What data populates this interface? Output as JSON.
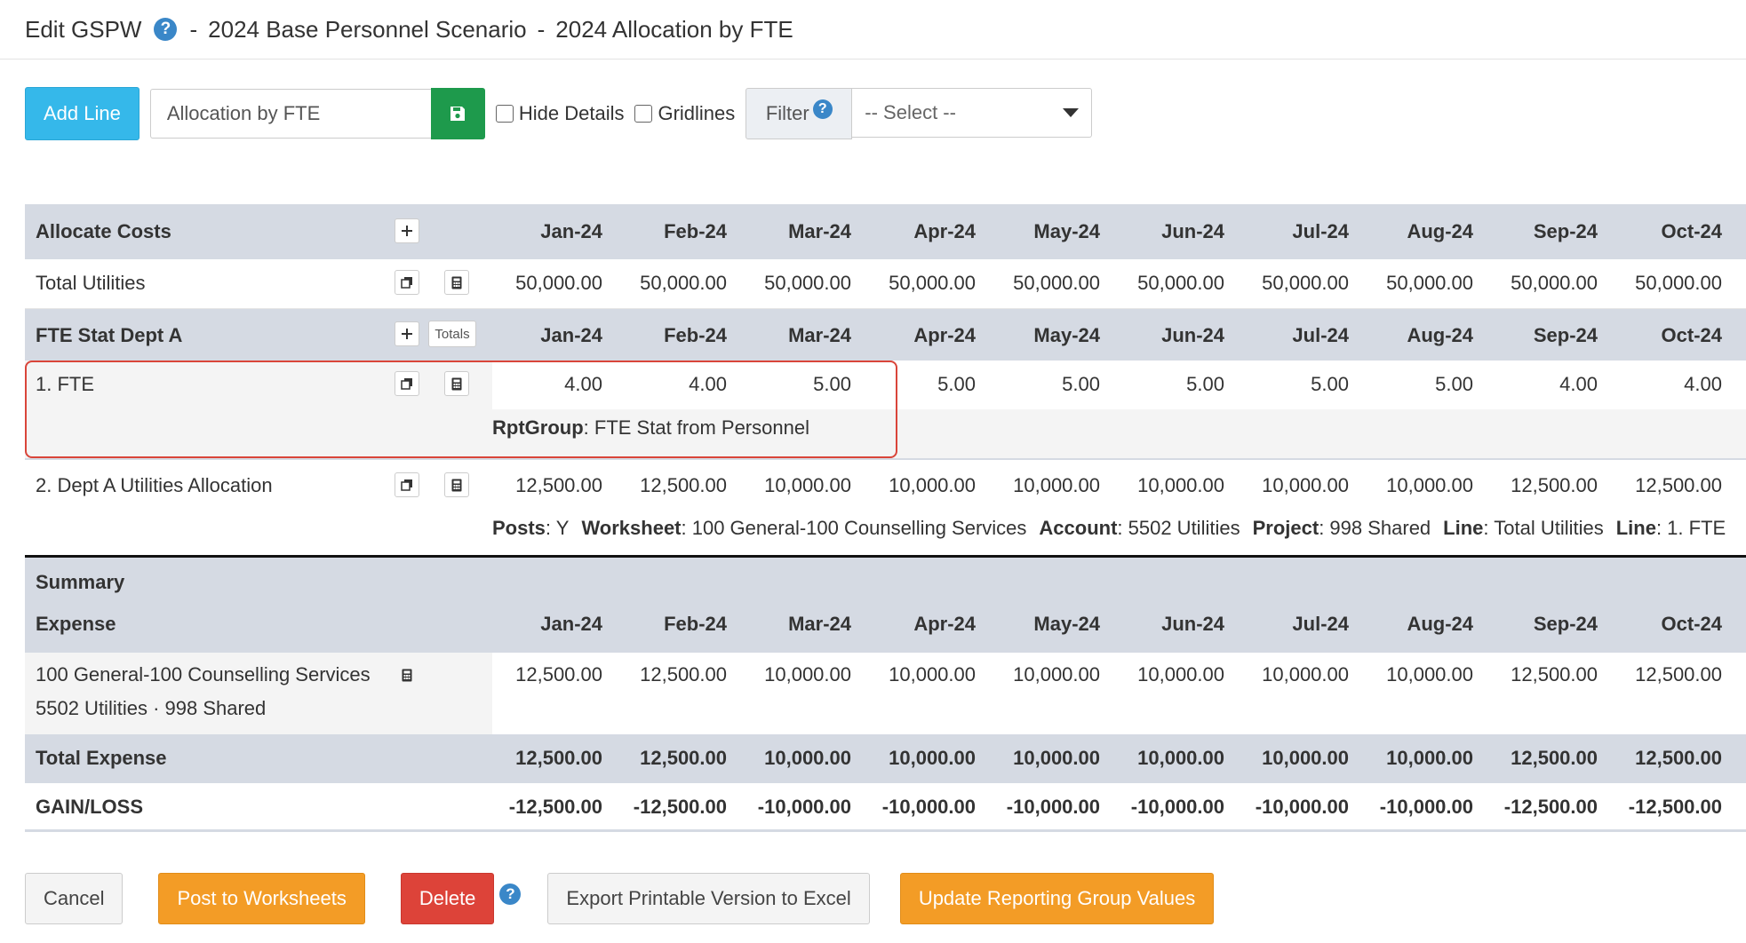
{
  "header": {
    "title": "Edit GSPW",
    "scenario": "2024 Base Personnel Scenario",
    "page": "2024 Allocation by FTE",
    "separator": "-"
  },
  "toolbar": {
    "add_line_label": "Add Line",
    "name_value": "Allocation by FTE",
    "hide_details_label": "Hide Details",
    "gridlines_label": "Gridlines",
    "filter_label": "Filter",
    "filter_selected": "-- Select --"
  },
  "months": [
    "Jan-24",
    "Feb-24",
    "Mar-24",
    "Apr-24",
    "May-24",
    "Jun-24",
    "Jul-24",
    "Aug-24",
    "Sep-24",
    "Oct-24"
  ],
  "sections": {
    "allocate_costs": {
      "title": "Allocate Costs",
      "total_utilities": {
        "label": "Total Utilities",
        "values": [
          "50,000.00",
          "50,000.00",
          "50,000.00",
          "50,000.00",
          "50,000.00",
          "50,000.00",
          "50,000.00",
          "50,000.00",
          "50,000.00",
          "50,000.00"
        ]
      }
    },
    "fte_stat": {
      "title": "FTE Stat Dept A",
      "totals_label": "Totals",
      "fte": {
        "label": "1. FTE",
        "values": [
          "4.00",
          "4.00",
          "5.00",
          "5.00",
          "5.00",
          "5.00",
          "5.00",
          "5.00",
          "4.00",
          "4.00"
        ],
        "meta": [
          {
            "key": "RptGroup",
            "value": ": FTE Stat from Personnel"
          }
        ]
      },
      "dept_a": {
        "label": "2. Dept A Utilities Allocation",
        "values": [
          "12,500.00",
          "12,500.00",
          "10,000.00",
          "10,000.00",
          "10,000.00",
          "10,000.00",
          "10,000.00",
          "10,000.00",
          "12,500.00",
          "12,500.00"
        ],
        "meta": [
          {
            "key": "Posts",
            "value": ": Y"
          },
          {
            "key": "Worksheet",
            "value": ": 100 General-100 Counselling Services"
          },
          {
            "key": "Account",
            "value": ": 5502 Utilities"
          },
          {
            "key": "Project",
            "value": ": 998 Shared"
          },
          {
            "key": "Line",
            "value": ": Total Utilities"
          },
          {
            "key": "Line",
            "value": ": 1. FTE"
          }
        ]
      }
    },
    "summary": {
      "title": "Summary",
      "expense_title": "Expense",
      "expense_row": {
        "line1": "100 General-100 Counselling Services",
        "line2": "5502 Utilities · 998 Shared",
        "values": [
          "12,500.00",
          "12,500.00",
          "10,000.00",
          "10,000.00",
          "10,000.00",
          "10,000.00",
          "10,000.00",
          "10,000.00",
          "12,500.00",
          "12,500.00"
        ]
      },
      "total_expense": {
        "label": "Total Expense",
        "values": [
          "12,500.00",
          "12,500.00",
          "10,000.00",
          "10,000.00",
          "10,000.00",
          "10,000.00",
          "10,000.00",
          "10,000.00",
          "12,500.00",
          "12,500.00"
        ]
      },
      "gain_loss": {
        "label": "GAIN/LOSS",
        "values": [
          "-12,500.00",
          "-12,500.00",
          "-10,000.00",
          "-10,000.00",
          "-10,000.00",
          "-10,000.00",
          "-10,000.00",
          "-10,000.00",
          "-12,500.00",
          "-12,500.00"
        ]
      }
    }
  },
  "footer": {
    "cancel_label": "Cancel",
    "post_label": "Post to Worksheets",
    "delete_label": "Delete",
    "export_label": "Export Printable Version to Excel",
    "update_label": "Update Reporting Group Values"
  },
  "colors": {
    "accent_blue": "#35b8ea",
    "save_green": "#1e9a4c",
    "header_gray": "#d5dae3",
    "highlight_red": "#d9453a",
    "orange": "#f39c26",
    "danger_red": "#dd4339"
  }
}
